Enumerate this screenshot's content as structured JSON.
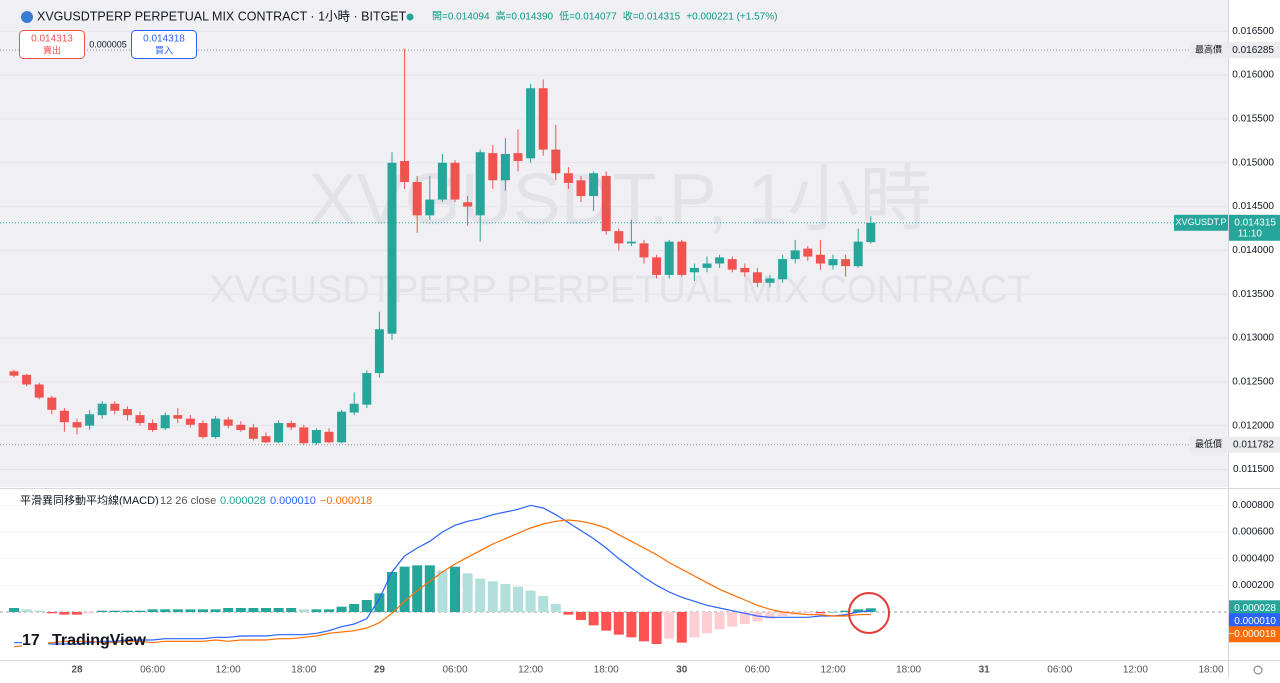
{
  "header": {
    "symbol": "XVGUSDTPERP PERPETUAL MIX CONTRACT · 1小時 · BITGET",
    "ohlc": [
      "開=0.014094",
      "高=0.014390",
      "低=0.014077",
      "收=0.014315",
      "+0.000221 (+1.57%)"
    ],
    "sell_price": "0.014313",
    "sell_label": "賣出",
    "spread": "0.000005",
    "buy_price": "0.014318",
    "buy_label": "買入",
    "logo": "TradingView"
  },
  "chart_data": [
    {
      "type": "candlestick",
      "watermark": "XVGUSDT.P, 1小時",
      "watermark_subtitle": "XVGUSDTPERP PERPETUAL MIX CONTRACT",
      "up_color": "#26a69a",
      "down_color": "#ef5350",
      "categories": [
        null,
        null,
        null,
        null,
        null,
        "28",
        null,
        null,
        null,
        null,
        null,
        "06:00",
        null,
        null,
        null,
        null,
        null,
        "12:00",
        null,
        null,
        null,
        null,
        null,
        "18:00",
        null,
        null,
        null,
        null,
        null,
        "29",
        null,
        null,
        null,
        null,
        null,
        "06:00",
        null,
        null,
        null,
        null,
        null,
        "12:00",
        null,
        null,
        null,
        null,
        null,
        "18:00",
        null,
        null,
        null,
        null,
        null,
        "30",
        null,
        null,
        null,
        null,
        null,
        "06:00",
        null,
        null,
        null,
        null,
        null,
        "12:00",
        null,
        null,
        null
      ],
      "future_ticks": [
        "18:00",
        "31",
        "06:00",
        "12:00",
        "18:00"
      ],
      "open": [
        0.01262,
        0.01258,
        0.01247,
        0.01232,
        0.01217,
        0.01204,
        0.012,
        0.01212,
        0.01225,
        0.01219,
        0.01212,
        0.01203,
        0.01197,
        0.01212,
        0.01208,
        0.01203,
        0.01187,
        0.01207,
        0.01201,
        0.01198,
        0.01188,
        0.01181,
        0.01203,
        0.01198,
        0.0118,
        0.01193,
        0.01181,
        0.01215,
        0.01224,
        0.0126,
        0.01305,
        0.01502,
        0.01478,
        0.0144,
        0.01458,
        0.015,
        0.01455,
        0.0144,
        0.01511,
        0.0148,
        0.01511,
        0.01505,
        0.01585,
        0.01515,
        0.01488,
        0.0148,
        0.01462,
        0.01485,
        0.01422,
        0.01408,
        0.01408,
        0.01392,
        0.01372,
        0.0141,
        0.01375,
        0.0138,
        0.01385,
        0.0139,
        0.0138,
        0.01375,
        0.01363,
        0.01367,
        0.0139,
        0.01402,
        0.01395,
        0.01383,
        0.0139,
        0.01382,
        0.014094
      ],
      "high": [
        0.01264,
        0.01259,
        0.01249,
        0.01234,
        0.0122,
        0.01208,
        0.01218,
        0.01228,
        0.01228,
        0.01222,
        0.01216,
        0.01207,
        0.01215,
        0.0122,
        0.01212,
        0.01206,
        0.01211,
        0.0121,
        0.01205,
        0.01202,
        0.01192,
        0.01206,
        0.01206,
        0.01201,
        0.01197,
        0.01197,
        0.01218,
        0.01238,
        0.01263,
        0.0133,
        0.01512,
        0.0163,
        0.01485,
        0.01485,
        0.0151,
        0.01503,
        0.01462,
        0.01515,
        0.0152,
        0.01528,
        0.01538,
        0.0159,
        0.01595,
        0.01543,
        0.01495,
        0.01485,
        0.0149,
        0.0149,
        0.01425,
        0.01435,
        0.01412,
        0.01395,
        0.01412,
        0.01412,
        0.01385,
        0.01393,
        0.01395,
        0.01393,
        0.01385,
        0.0138,
        0.01372,
        0.01395,
        0.01412,
        0.01405,
        0.01412,
        0.01395,
        0.01395,
        0.01425,
        0.01439
      ],
      "low": [
        0.01255,
        0.01245,
        0.0123,
        0.01213,
        0.01193,
        0.0119,
        0.01195,
        0.01208,
        0.01213,
        0.01206,
        0.012,
        0.01193,
        0.01195,
        0.01203,
        0.01198,
        0.01185,
        0.01185,
        0.01197,
        0.01193,
        0.01183,
        0.0118,
        0.0118,
        0.01195,
        0.01178,
        0.01178,
        0.0118,
        0.0118,
        0.01212,
        0.0122,
        0.01255,
        0.01298,
        0.0147,
        0.0142,
        0.01435,
        0.01455,
        0.01455,
        0.01428,
        0.0141,
        0.0147,
        0.01468,
        0.0149,
        0.015,
        0.01508,
        0.0148,
        0.0147,
        0.01455,
        0.01445,
        0.01418,
        0.014,
        0.01405,
        0.01385,
        0.01368,
        0.01368,
        0.0137,
        0.01365,
        0.01375,
        0.0138,
        0.01375,
        0.0137,
        0.01358,
        0.01358,
        0.01363,
        0.01385,
        0.01388,
        0.01378,
        0.01378,
        0.0137,
        0.0138,
        0.014077
      ],
      "close": [
        0.01257,
        0.01247,
        0.01232,
        0.01218,
        0.01204,
        0.01198,
        0.01213,
        0.01225,
        0.01217,
        0.01212,
        0.01203,
        0.01195,
        0.01212,
        0.01208,
        0.01201,
        0.01187,
        0.01208,
        0.012,
        0.01195,
        0.01185,
        0.01181,
        0.01203,
        0.01198,
        0.0118,
        0.01195,
        0.01181,
        0.01216,
        0.01225,
        0.0126,
        0.0131,
        0.015,
        0.01478,
        0.0144,
        0.01458,
        0.015,
        0.01458,
        0.0145,
        0.01512,
        0.0148,
        0.0151,
        0.01502,
        0.01585,
        0.01515,
        0.01488,
        0.01477,
        0.01462,
        0.01488,
        0.01422,
        0.01408,
        0.0141,
        0.01392,
        0.01372,
        0.0141,
        0.01372,
        0.0138,
        0.01385,
        0.01392,
        0.01378,
        0.01375,
        0.01363,
        0.01368,
        0.0139,
        0.014,
        0.01393,
        0.01385,
        0.0139,
        0.01382,
        0.0141,
        0.014315
      ],
      "ylim": [
        0.0113,
        0.0168
      ],
      "yticks": [
        {
          "value": 0.0115,
          "label": "0.011500"
        },
        {
          "value": 0.012,
          "label": "0.012000"
        },
        {
          "value": 0.0125,
          "label": "0.012500"
        },
        {
          "value": 0.013,
          "label": "0.013000"
        },
        {
          "value": 0.0135,
          "label": "0.013500"
        },
        {
          "value": 0.014,
          "label": "0.014000"
        },
        {
          "value": 0.0145,
          "label": "0.014500"
        },
        {
          "value": 0.015,
          "label": "0.015000"
        },
        {
          "value": 0.0155,
          "label": "0.015500"
        },
        {
          "value": 0.016,
          "label": "0.016000"
        },
        {
          "value": 0.0165,
          "label": "0.016500"
        }
      ],
      "high_label": "最高價",
      "high_value": 0.016285,
      "low_label": "最低價",
      "low_value": 0.011782,
      "last_label": "XVGUSDT.P",
      "last_value": 0.014315,
      "countdown": "11:10"
    },
    {
      "type": "macd",
      "title": "平滑異同移動平均線(MACD)",
      "params": "12 26 close",
      "zero_line": 0,
      "histogram": {
        "name": "0.000028",
        "values": [
          3e-05,
          2e-05,
          1e-05,
          -1e-05,
          -2e-05,
          -2e-05,
          -1e-05,
          1e-05,
          1e-05,
          1e-05,
          1e-05,
          2e-05,
          2e-05,
          2e-05,
          2e-05,
          2e-05,
          2e-05,
          3e-05,
          3e-05,
          3e-05,
          3e-05,
          3e-05,
          3e-05,
          2e-05,
          2e-05,
          2e-05,
          4e-05,
          6e-05,
          9e-05,
          0.00014,
          0.0003,
          0.00034,
          0.00035,
          0.00035,
          0.00031,
          0.00034,
          0.00029,
          0.00025,
          0.00023,
          0.00021,
          0.00019,
          0.00016,
          0.00012,
          6e-05,
          -2e-05,
          -6e-05,
          -0.0001,
          -0.00014,
          -0.00017,
          -0.00019,
          -0.00022,
          -0.00024,
          -0.0002,
          -0.00023,
          -0.00019,
          -0.00016,
          -0.00013,
          -0.00011,
          -9e-05,
          -7e-05,
          -5e-05,
          -3e-05,
          -2e-05,
          -1e-05,
          -1e-05,
          0,
          1e-05,
          2e-05,
          2.8e-05
        ],
        "colors": [
          "#26a69a",
          "#b2dfdb",
          "#ff5252",
          "#ffcdd2"
        ]
      },
      "series": [
        {
          "name": "0.000010",
          "color": "#2962ff",
          "values": [
            -0.00023,
            -0.00023,
            -0.00023,
            -0.00024,
            -0.00024,
            -0.00024,
            -0.00023,
            -0.00022,
            -0.00022,
            -0.00021,
            -0.00021,
            -0.00021,
            -0.0002,
            -0.0002,
            -0.0002,
            -0.0002,
            -0.00019,
            -0.00019,
            -0.00018,
            -0.00018,
            -0.00018,
            -0.00017,
            -0.00017,
            -0.00017,
            -0.00016,
            -0.00014,
            -0.00011,
            -9e-05,
            -5e-05,
            0.0001,
            0.0003,
            0.00042,
            0.00048,
            0.00053,
            0.0006,
            0.00065,
            0.00068,
            0.0007,
            0.00073,
            0.00075,
            0.00077,
            0.0008,
            0.00078,
            0.00073,
            0.00067,
            0.00061,
            0.00055,
            0.00048,
            0.0004,
            0.00033,
            0.00026,
            0.0002,
            0.00015,
            0.00011,
            8e-05,
            5e-05,
            3e-05,
            1e-05,
            -1e-05,
            -3e-05,
            -4e-05,
            -4e-05,
            -4e-05,
            -4e-05,
            -3e-05,
            -3e-05,
            -2e-05,
            0,
            1e-05
          ]
        },
        {
          "name": "−0.000018",
          "color": "#ff6d00",
          "values": [
            -0.00026,
            -0.00025,
            -0.00024,
            -0.00023,
            -0.00022,
            -0.00022,
            -0.00022,
            -0.00023,
            -0.00023,
            -0.00022,
            -0.00022,
            -0.00023,
            -0.00022,
            -0.00022,
            -0.00022,
            -0.00022,
            -0.00021,
            -0.00022,
            -0.00021,
            -0.00021,
            -0.00021,
            -0.0002,
            -0.0002,
            -0.00019,
            -0.00018,
            -0.00016,
            -0.00015,
            -0.00014,
            -0.00012,
            -8e-05,
            -1e-05,
            8e-05,
            0.00016,
            0.00023,
            0.0003,
            0.00036,
            0.00041,
            0.00046,
            0.00051,
            0.00055,
            0.00059,
            0.00063,
            0.00066,
            0.00068,
            0.00069,
            0.00068,
            0.00066,
            0.00063,
            0.00058,
            0.00053,
            0.00048,
            0.00043,
            0.00037,
            0.00032,
            0.00027,
            0.00022,
            0.00017,
            0.00013,
            9e-05,
            5e-05,
            2e-05,
            0,
            -1e-05,
            -2e-05,
            -2e-05,
            -3e-05,
            -3e-05,
            -2e-05,
            -1.8e-05
          ]
        }
      ],
      "ylim": [
        -0.00036,
        0.0009
      ],
      "yticks": [
        {
          "value": 0.0002,
          "label": "0.000200"
        },
        {
          "value": 0.0004,
          "label": "0.000400"
        },
        {
          "value": 0.0006,
          "label": "0.000600"
        },
        {
          "value": 0.0008,
          "label": "0.000800"
        }
      ]
    }
  ]
}
